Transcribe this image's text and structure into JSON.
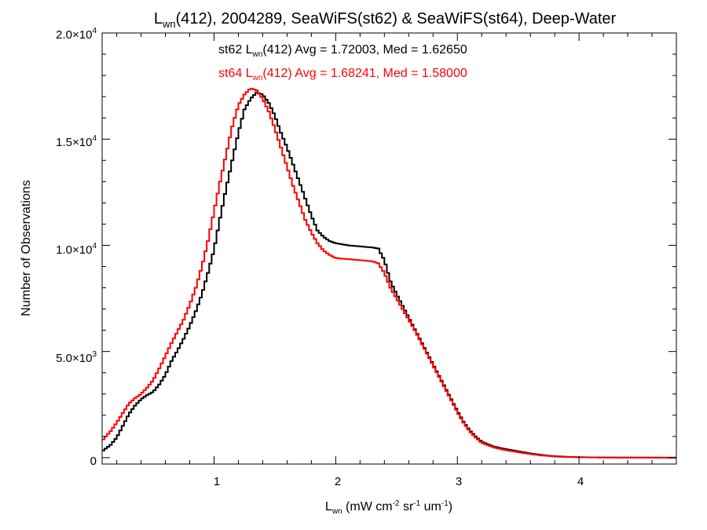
{
  "chart_data": {
    "type": "line",
    "title": {
      "main": "L",
      "main_sub": "wn",
      "rest": "(412), 2004289, SeaWiFS(st62) & SeaWiFS(st64), Deep-Water"
    },
    "xlabel": {
      "main": "L",
      "sub": "wn",
      "p1": " (mW cm",
      "sup1": "-2",
      "p2": " sr",
      "sup2": "-1",
      "p3": " um",
      "sup3": "-1",
      "p4": ")"
    },
    "ylabel": "Number of Observations",
    "xlim": [
      0.08,
      4.8
    ],
    "ylim": [
      -300,
      20000
    ],
    "xticks": [
      {
        "value": 1,
        "label": "1"
      },
      {
        "value": 2,
        "label": "2"
      },
      {
        "value": 3,
        "label": "3"
      },
      {
        "value": 4,
        "label": "4"
      }
    ],
    "yticks": [
      {
        "value": 0,
        "mant": "0",
        "exp": ""
      },
      {
        "value": 5000,
        "mant": "5.0×10",
        "exp": "3"
      },
      {
        "value": 10000,
        "mant": "1.0×10",
        "exp": "4"
      },
      {
        "value": 15000,
        "mant": "1.5×10",
        "exp": "4"
      },
      {
        "value": 20000,
        "mant": "2.0×10",
        "exp": "4"
      }
    ],
    "stats": [
      {
        "pre": "st62 L",
        "sub": "wn",
        "post": "(412) Avg = 1.72003, Med = 1.62650",
        "color": "#000000"
      },
      {
        "pre": "st64 L",
        "sub": "wn",
        "post": "(412) Avg = 1.68241, Med = 1.58000",
        "color": "#ff0000"
      }
    ],
    "series": [
      {
        "color": "#000000",
        "x": [
          0.08,
          0.15,
          0.2,
          0.25,
          0.3,
          0.35,
          0.4,
          0.45,
          0.5,
          0.55,
          0.6,
          0.65,
          0.7,
          0.75,
          0.8,
          0.85,
          0.9,
          0.95,
          1.0,
          1.05,
          1.1,
          1.15,
          1.2,
          1.25,
          1.3,
          1.35,
          1.4,
          1.45,
          1.5,
          1.55,
          1.6,
          1.65,
          1.7,
          1.75,
          1.8,
          1.85,
          1.9,
          1.95,
          2.0,
          2.1,
          2.2,
          2.3,
          2.35,
          2.4,
          2.45,
          2.5,
          2.55,
          2.6,
          2.65,
          2.7,
          2.75,
          2.8,
          2.85,
          2.9,
          2.95,
          3.0,
          3.05,
          3.1,
          3.15,
          3.2,
          3.3,
          3.4,
          3.5,
          3.6,
          3.7,
          3.8,
          3.9,
          4.0,
          4.1,
          4.2,
          4.4,
          4.6,
          4.8
        ],
        "y": [
          300,
          600,
          950,
          1500,
          2050,
          2450,
          2750,
          2950,
          3100,
          3450,
          3900,
          4550,
          5050,
          5600,
          6200,
          6900,
          7700,
          8700,
          9800,
          11300,
          12700,
          14000,
          15300,
          16400,
          16900,
          17200,
          17100,
          16700,
          16100,
          15300,
          14600,
          13800,
          13000,
          12200,
          11400,
          10700,
          10400,
          10200,
          10100,
          10000,
          9950,
          9900,
          9850,
          9300,
          8300,
          7700,
          7150,
          6600,
          6050,
          5500,
          4950,
          4400,
          3850,
          3300,
          2750,
          2200,
          1700,
          1300,
          1000,
          750,
          520,
          400,
          300,
          200,
          120,
          70,
          40,
          25,
          15,
          10,
          5,
          3,
          2
        ]
      },
      {
        "color": "#ff0000",
        "x": [
          0.08,
          0.15,
          0.2,
          0.25,
          0.3,
          0.35,
          0.4,
          0.45,
          0.5,
          0.55,
          0.6,
          0.65,
          0.7,
          0.75,
          0.8,
          0.85,
          0.9,
          0.95,
          1.0,
          1.05,
          1.1,
          1.15,
          1.2,
          1.25,
          1.3,
          1.35,
          1.4,
          1.45,
          1.5,
          1.55,
          1.6,
          1.65,
          1.7,
          1.75,
          1.8,
          1.85,
          1.9,
          1.95,
          2.0,
          2.1,
          2.2,
          2.3,
          2.35,
          2.4,
          2.45,
          2.5,
          2.55,
          2.6,
          2.65,
          2.7,
          2.75,
          2.8,
          2.85,
          2.9,
          2.95,
          3.0,
          3.05,
          3.1,
          3.15,
          3.2,
          3.3,
          3.4,
          3.5,
          3.6,
          3.7,
          3.8,
          3.9,
          4.0,
          4.1,
          4.2,
          4.4,
          4.6,
          4.8
        ],
        "y": [
          800,
          1250,
          1650,
          2100,
          2550,
          2800,
          3000,
          3300,
          3650,
          4200,
          4800,
          5400,
          5950,
          6500,
          7200,
          8000,
          9000,
          10200,
          11600,
          13000,
          14300,
          15600,
          16600,
          17100,
          17400,
          17300,
          16900,
          16300,
          15500,
          14600,
          13700,
          12800,
          12000,
          11200,
          10600,
          10100,
          9750,
          9550,
          9400,
          9350,
          9300,
          9250,
          9150,
          8700,
          8000,
          7500,
          7000,
          6500,
          6000,
          5450,
          4900,
          4350,
          3800,
          3250,
          2700,
          2150,
          1650,
          1250,
          950,
          700,
          480,
          350,
          260,
          170,
          100,
          55,
          30,
          18,
          10,
          6,
          3,
          2,
          1
        ]
      }
    ]
  }
}
